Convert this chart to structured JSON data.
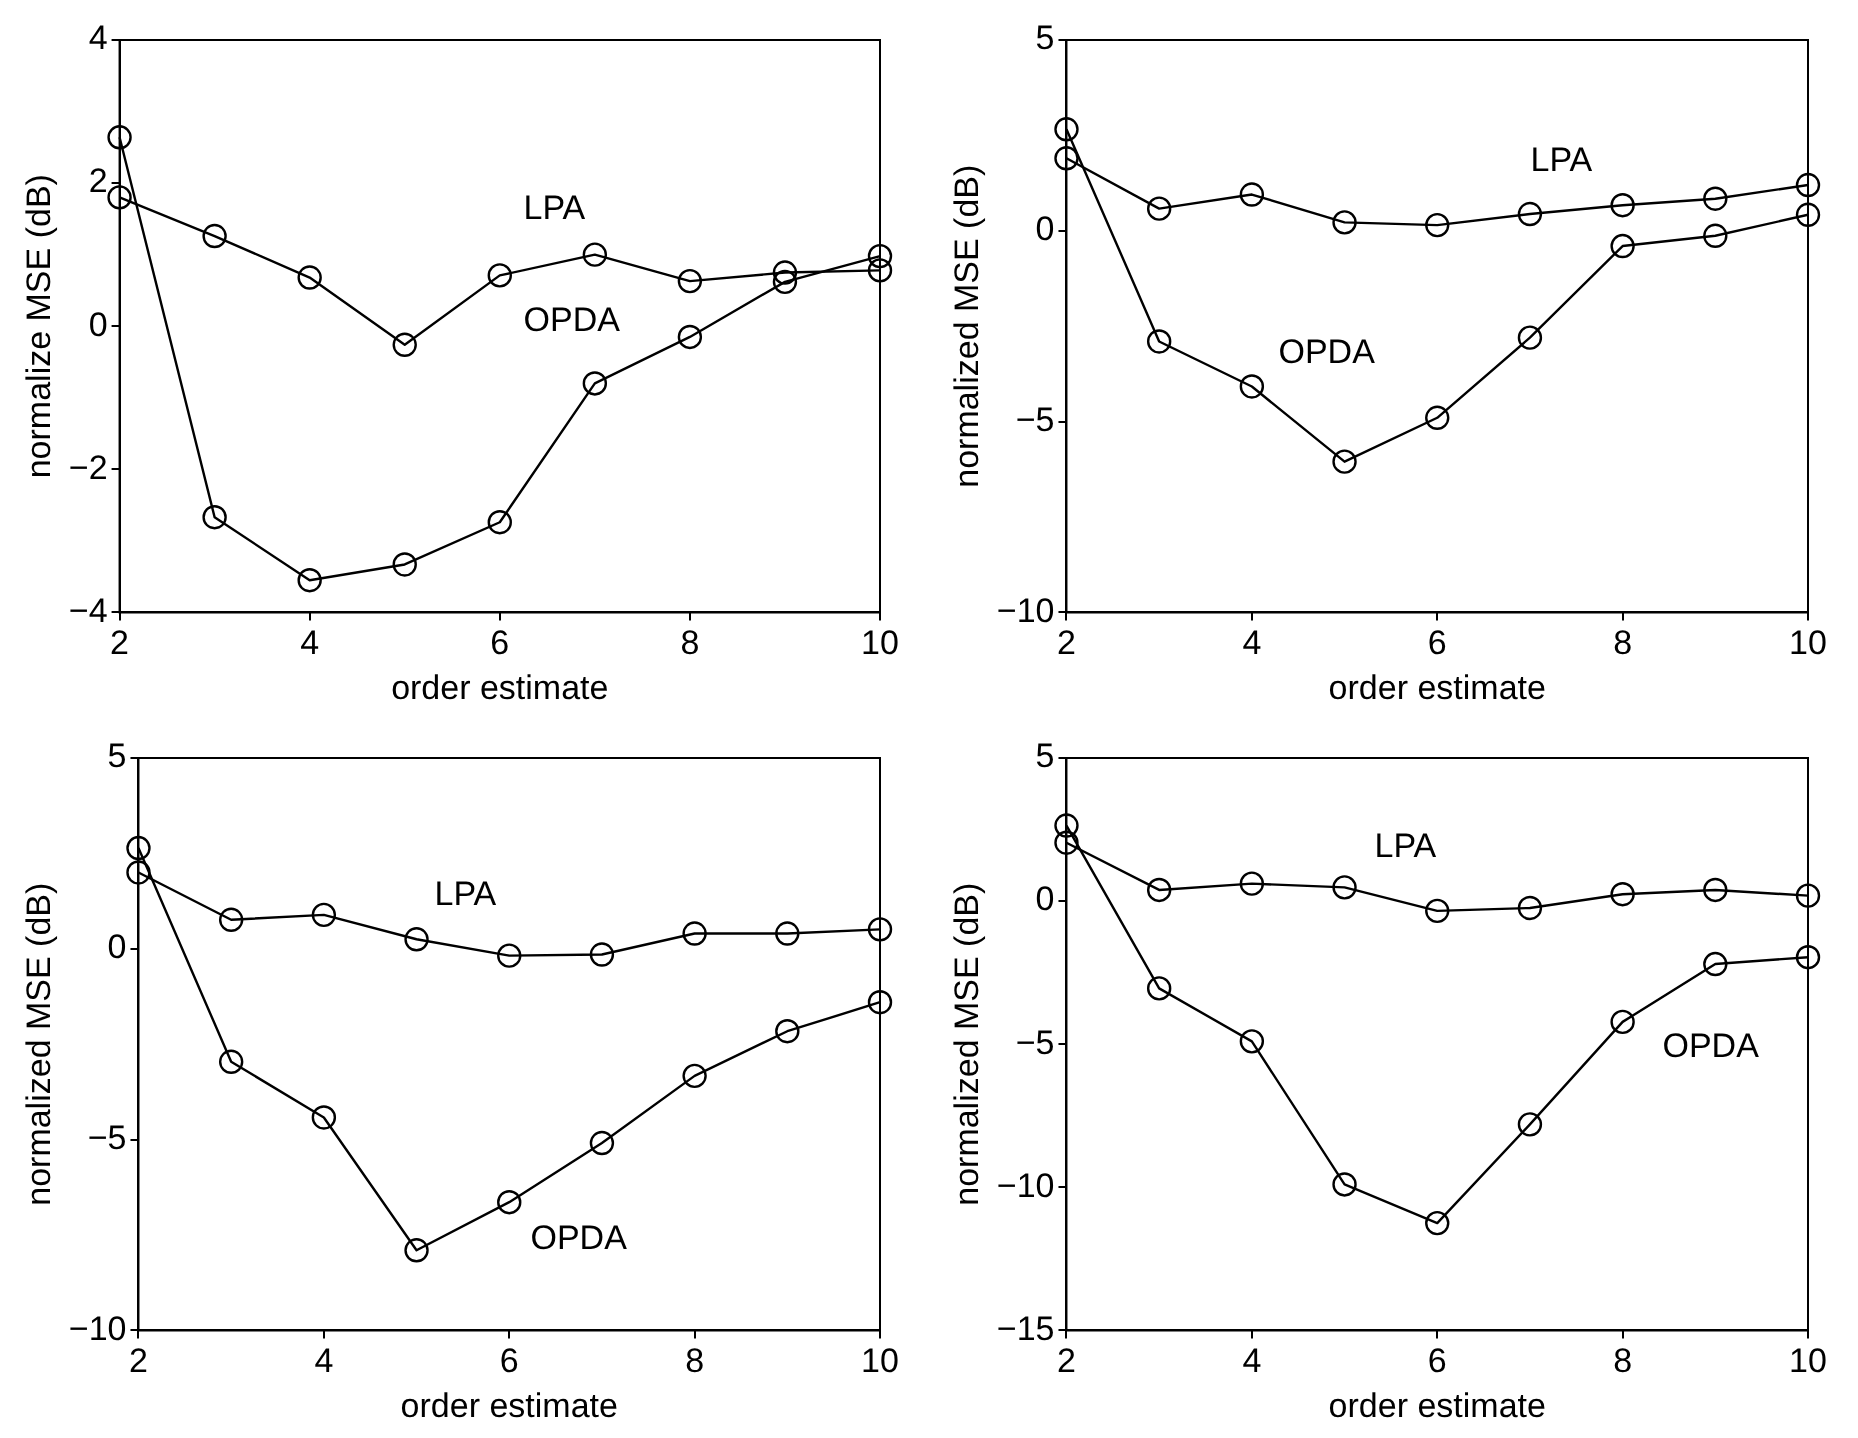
{
  "chart_data": [
    {
      "type": "line",
      "x": [
        2,
        3,
        4,
        5,
        6,
        7,
        8,
        9,
        10
      ],
      "xlabel": "order estimate",
      "ylabel": "normalize MSE (dB)",
      "xlim": [
        2,
        10
      ],
      "xticks": [
        2,
        4,
        6,
        8,
        10
      ],
      "ylim": [
        -4,
        4
      ],
      "yticks": [
        -4,
        -2,
        0,
        2,
        4
      ],
      "marker": "circle",
      "line_style": "solid",
      "series": [
        {
          "name": "LPA",
          "color": "#000000",
          "values": [
            1.8,
            1.26,
            0.68,
            -0.26,
            0.71,
            1.0,
            0.63,
            0.75,
            0.78
          ]
        },
        {
          "name": "OPDA",
          "color": "#000000",
          "values": [
            2.64,
            -2.67,
            -3.55,
            -3.33,
            -2.74,
            -0.8,
            -0.15,
            0.62,
            0.98
          ]
        }
      ]
    },
    {
      "type": "line",
      "x": [
        2,
        3,
        4,
        5,
        6,
        7,
        8,
        9,
        10
      ],
      "xlabel": "order estimate",
      "ylabel": "normalized MSE (dB)",
      "xlim": [
        2,
        10
      ],
      "xticks": [
        2,
        4,
        6,
        8,
        10
      ],
      "ylim": [
        -10,
        5
      ],
      "yticks": [
        -10,
        -5,
        0,
        5
      ],
      "marker": "circle",
      "line_style": "solid",
      "series": [
        {
          "name": "LPA",
          "color": "#000000",
          "values": [
            1.9,
            0.58,
            0.95,
            0.22,
            0.15,
            0.44,
            0.67,
            0.84,
            1.2
          ]
        },
        {
          "name": "OPDA",
          "color": "#000000",
          "values": [
            2.66,
            -2.9,
            -4.08,
            -6.05,
            -4.9,
            -2.8,
            -0.4,
            -0.13,
            0.42
          ]
        }
      ]
    },
    {
      "type": "line",
      "x": [
        2,
        3,
        4,
        5,
        6,
        7,
        8,
        9,
        10
      ],
      "xlabel": "order estimate",
      "ylabel": "normalized MSE (dB)",
      "xlim": [
        2,
        10
      ],
      "xticks": [
        2,
        4,
        6,
        8,
        10
      ],
      "ylim": [
        -10,
        5
      ],
      "yticks": [
        -10,
        -5,
        0,
        5
      ],
      "marker": "circle",
      "line_style": "solid",
      "series": [
        {
          "name": "LPA",
          "color": "#000000",
          "values": [
            2.0,
            0.76,
            0.89,
            0.25,
            -0.18,
            -0.15,
            0.4,
            0.4,
            0.51
          ]
        },
        {
          "name": "OPDA",
          "color": "#000000",
          "values": [
            2.64,
            -2.96,
            -4.42,
            -7.9,
            -6.64,
            -5.09,
            -3.33,
            -2.16,
            -1.4
          ]
        }
      ]
    },
    {
      "type": "line",
      "x": [
        2,
        3,
        4,
        5,
        6,
        7,
        8,
        9,
        10
      ],
      "xlabel": "order estimate",
      "ylabel": "normalized MSE (dB)",
      "xlim": [
        2,
        10
      ],
      "xticks": [
        2,
        4,
        6,
        8,
        10
      ],
      "ylim": [
        -15,
        5
      ],
      "yticks": [
        -15,
        -10,
        -5,
        0,
        5
      ],
      "marker": "circle",
      "line_style": "solid",
      "series": [
        {
          "name": "LPA",
          "color": "#000000",
          "values": [
            2.04,
            0.39,
            0.61,
            0.48,
            -0.34,
            -0.24,
            0.24,
            0.39,
            0.19
          ]
        },
        {
          "name": "OPDA",
          "color": "#000000",
          "values": [
            2.64,
            -3.05,
            -4.9,
            -9.9,
            -11.25,
            -7.8,
            -4.22,
            -2.2,
            -1.96
          ]
        }
      ]
    }
  ]
}
